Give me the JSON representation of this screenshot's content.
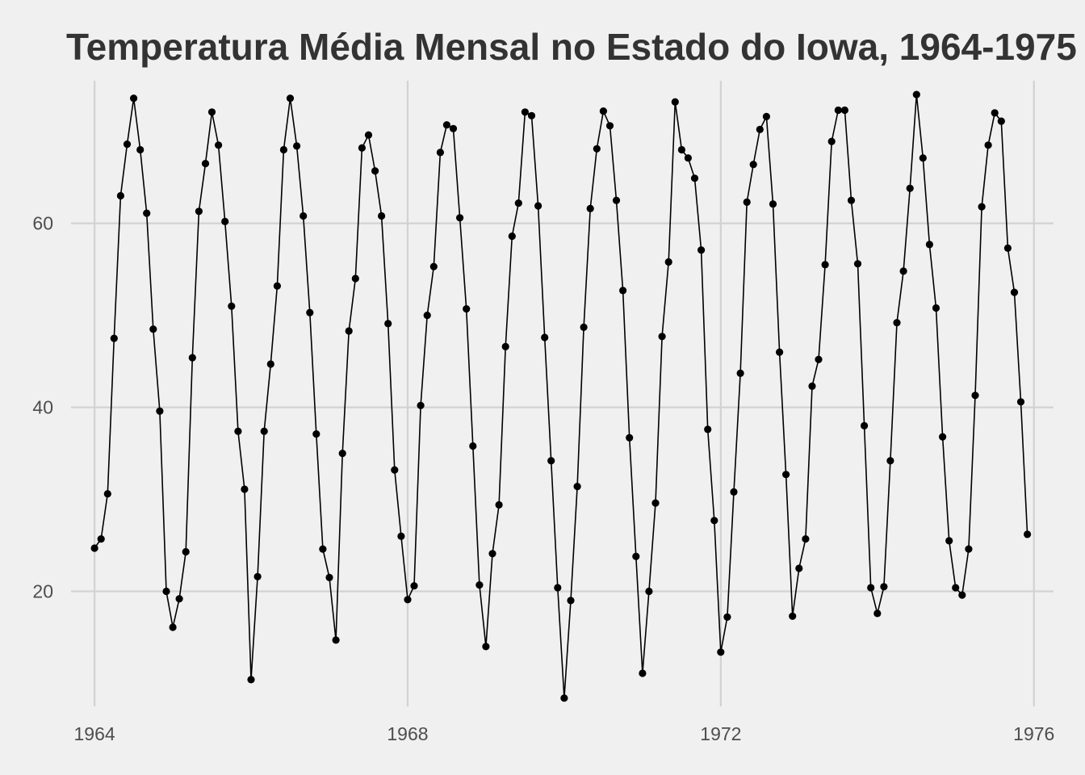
{
  "chart_data": {
    "type": "line",
    "title": "Temperatura Média Mensal no Estado do Iowa, 1964-1975",
    "xlabel": "",
    "ylabel": "",
    "xlim": [
      1963.7,
      1976.25
    ],
    "ylim": [
      7.5,
      75.5
    ],
    "x_ticks": [
      1964,
      1968,
      1972,
      1976
    ],
    "y_ticks": [
      20,
      40,
      60
    ],
    "grid": true,
    "legend": "none",
    "point_color": "#000000",
    "line_color": "#000000",
    "background": "#f0f0f0",
    "x_start": 1964,
    "x_step": 0.08333,
    "series": [
      {
        "values": [
          24.7,
          25.7,
          30.6,
          47.5,
          63.0,
          68.6,
          73.6,
          68.0,
          61.1,
          48.5,
          39.6,
          20.0,
          16.1,
          19.2,
          24.3,
          45.4,
          61.3,
          66.5,
          72.1,
          68.5,
          60.2,
          51.0,
          37.4,
          31.1,
          10.4,
          21.6,
          37.4,
          44.7,
          53.2,
          68.0,
          73.6,
          68.4,
          60.8,
          50.3,
          37.1,
          24.6,
          21.5,
          14.7,
          35.0,
          48.3,
          54.0,
          68.2,
          69.6,
          65.7,
          60.8,
          49.1,
          33.2,
          26.0,
          19.1,
          20.6,
          40.2,
          50.0,
          55.3,
          67.7,
          70.7,
          70.3,
          60.6,
          50.7,
          35.8,
          20.7,
          14.0,
          24.1,
          29.4,
          46.6,
          58.6,
          62.2,
          72.1,
          71.7,
          61.9,
          47.6,
          34.2,
          20.4,
          8.4,
          19.0,
          31.4,
          48.7,
          61.6,
          68.1,
          72.2,
          70.6,
          62.5,
          52.7,
          36.7,
          23.8,
          11.1,
          20.0,
          29.6,
          47.7,
          55.8,
          73.2,
          68.0,
          67.1,
          64.9,
          57.1,
          37.6,
          27.7,
          13.4,
          17.2,
          30.8,
          43.7,
          62.3,
          66.4,
          70.2,
          71.6,
          62.1,
          46.0,
          32.7,
          17.3,
          22.5,
          25.7,
          42.3,
          45.2,
          55.5,
          68.9,
          72.3,
          72.3,
          62.5,
          55.6,
          38.0,
          20.4,
          17.6,
          20.5,
          34.2,
          49.2,
          54.8,
          63.8,
          74.0,
          67.1,
          57.7,
          50.8,
          36.8,
          25.5,
          20.4,
          19.6,
          24.6,
          41.3,
          61.8,
          68.5,
          72.0,
          71.1,
          57.3,
          52.5,
          40.6,
          26.2
        ]
      }
    ]
  }
}
